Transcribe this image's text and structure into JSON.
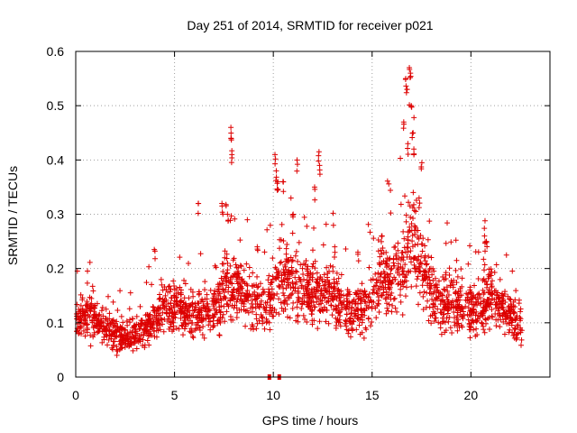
{
  "chart_data": {
    "type": "scatter",
    "title": "Day 251 of 2014, SRMTID for receiver p021",
    "xlabel": "GPS time / hours",
    "ylabel": "SRMTID / TECUs",
    "xlim": [
      0,
      24
    ],
    "ylim": [
      0,
      0.6
    ],
    "xticks": [
      0,
      5,
      10,
      15,
      20
    ],
    "xtick_labels": [
      "0",
      "5",
      "10",
      "15",
      "20"
    ],
    "yticks": [
      0,
      0.1,
      0.2,
      0.3,
      0.4,
      0.5,
      0.6
    ],
    "ytick_labels": [
      "0",
      "0.1",
      "0.2",
      "0.3",
      "0.4",
      "0.5",
      "0.6"
    ],
    "grid": true,
    "marker": "+",
    "color": "#dd0000",
    "series": [
      {
        "name": "SRMTID",
        "trend": [
          [
            0.0,
            0.1
          ],
          [
            0.5,
            0.11
          ],
          [
            1.0,
            0.1
          ],
          [
            1.5,
            0.095
          ],
          [
            2.0,
            0.08
          ],
          [
            2.5,
            0.075
          ],
          [
            3.0,
            0.08
          ],
          [
            3.5,
            0.09
          ],
          [
            4.0,
            0.11
          ],
          [
            4.5,
            0.13
          ],
          [
            5.0,
            0.13
          ],
          [
            5.5,
            0.12
          ],
          [
            6.0,
            0.11
          ],
          [
            6.5,
            0.115
          ],
          [
            7.0,
            0.12
          ],
          [
            7.5,
            0.16
          ],
          [
            8.0,
            0.17
          ],
          [
            8.5,
            0.15
          ],
          [
            9.0,
            0.14
          ],
          [
            9.5,
            0.12
          ],
          [
            10.0,
            0.16
          ],
          [
            10.5,
            0.18
          ],
          [
            11.0,
            0.17
          ],
          [
            11.5,
            0.16
          ],
          [
            12.0,
            0.15
          ],
          [
            12.5,
            0.16
          ],
          [
            13.0,
            0.15
          ],
          [
            13.5,
            0.13
          ],
          [
            14.0,
            0.12
          ],
          [
            14.5,
            0.13
          ],
          [
            15.0,
            0.14
          ],
          [
            15.5,
            0.18
          ],
          [
            16.0,
            0.17
          ],
          [
            16.5,
            0.2
          ],
          [
            17.0,
            0.26
          ],
          [
            17.5,
            0.2
          ],
          [
            18.0,
            0.15
          ],
          [
            18.5,
            0.13
          ],
          [
            19.0,
            0.14
          ],
          [
            19.5,
            0.13
          ],
          [
            20.0,
            0.12
          ],
          [
            20.5,
            0.13
          ],
          [
            21.0,
            0.15
          ],
          [
            21.5,
            0.13
          ],
          [
            22.0,
            0.11
          ],
          [
            22.5,
            0.1
          ]
        ],
        "spikes": [
          [
            7.85,
            0.46
          ],
          [
            7.88,
            0.44
          ],
          [
            7.9,
            0.41
          ],
          [
            10.1,
            0.41
          ],
          [
            10.15,
            0.38
          ],
          [
            10.2,
            0.36
          ],
          [
            10.5,
            0.36
          ],
          [
            11.2,
            0.4
          ],
          [
            12.3,
            0.415
          ],
          [
            12.35,
            0.39
          ],
          [
            12.1,
            0.35
          ],
          [
            16.7,
            0.55
          ],
          [
            16.75,
            0.53
          ],
          [
            16.9,
            0.57
          ],
          [
            16.95,
            0.56
          ],
          [
            17.0,
            0.5
          ],
          [
            16.6,
            0.47
          ],
          [
            17.05,
            0.45
          ],
          [
            17.1,
            0.42
          ],
          [
            16.8,
            0.43
          ],
          [
            17.5,
            0.395
          ],
          [
            17.4,
            0.33
          ],
          [
            7.4,
            0.32
          ],
          [
            7.7,
            0.3
          ],
          [
            6.2,
            0.32
          ],
          [
            20.7,
            0.26
          ],
          [
            20.8,
            0.25
          ],
          [
            4.0,
            0.235
          ],
          [
            9.2,
            0.24
          ],
          [
            11.0,
            0.3
          ],
          [
            15.5,
            0.26
          ],
          [
            14.3,
            0.23
          ],
          [
            13.1,
            0.24
          ]
        ],
        "gap_markers": [
          9.8,
          10.3
        ]
      }
    ]
  }
}
